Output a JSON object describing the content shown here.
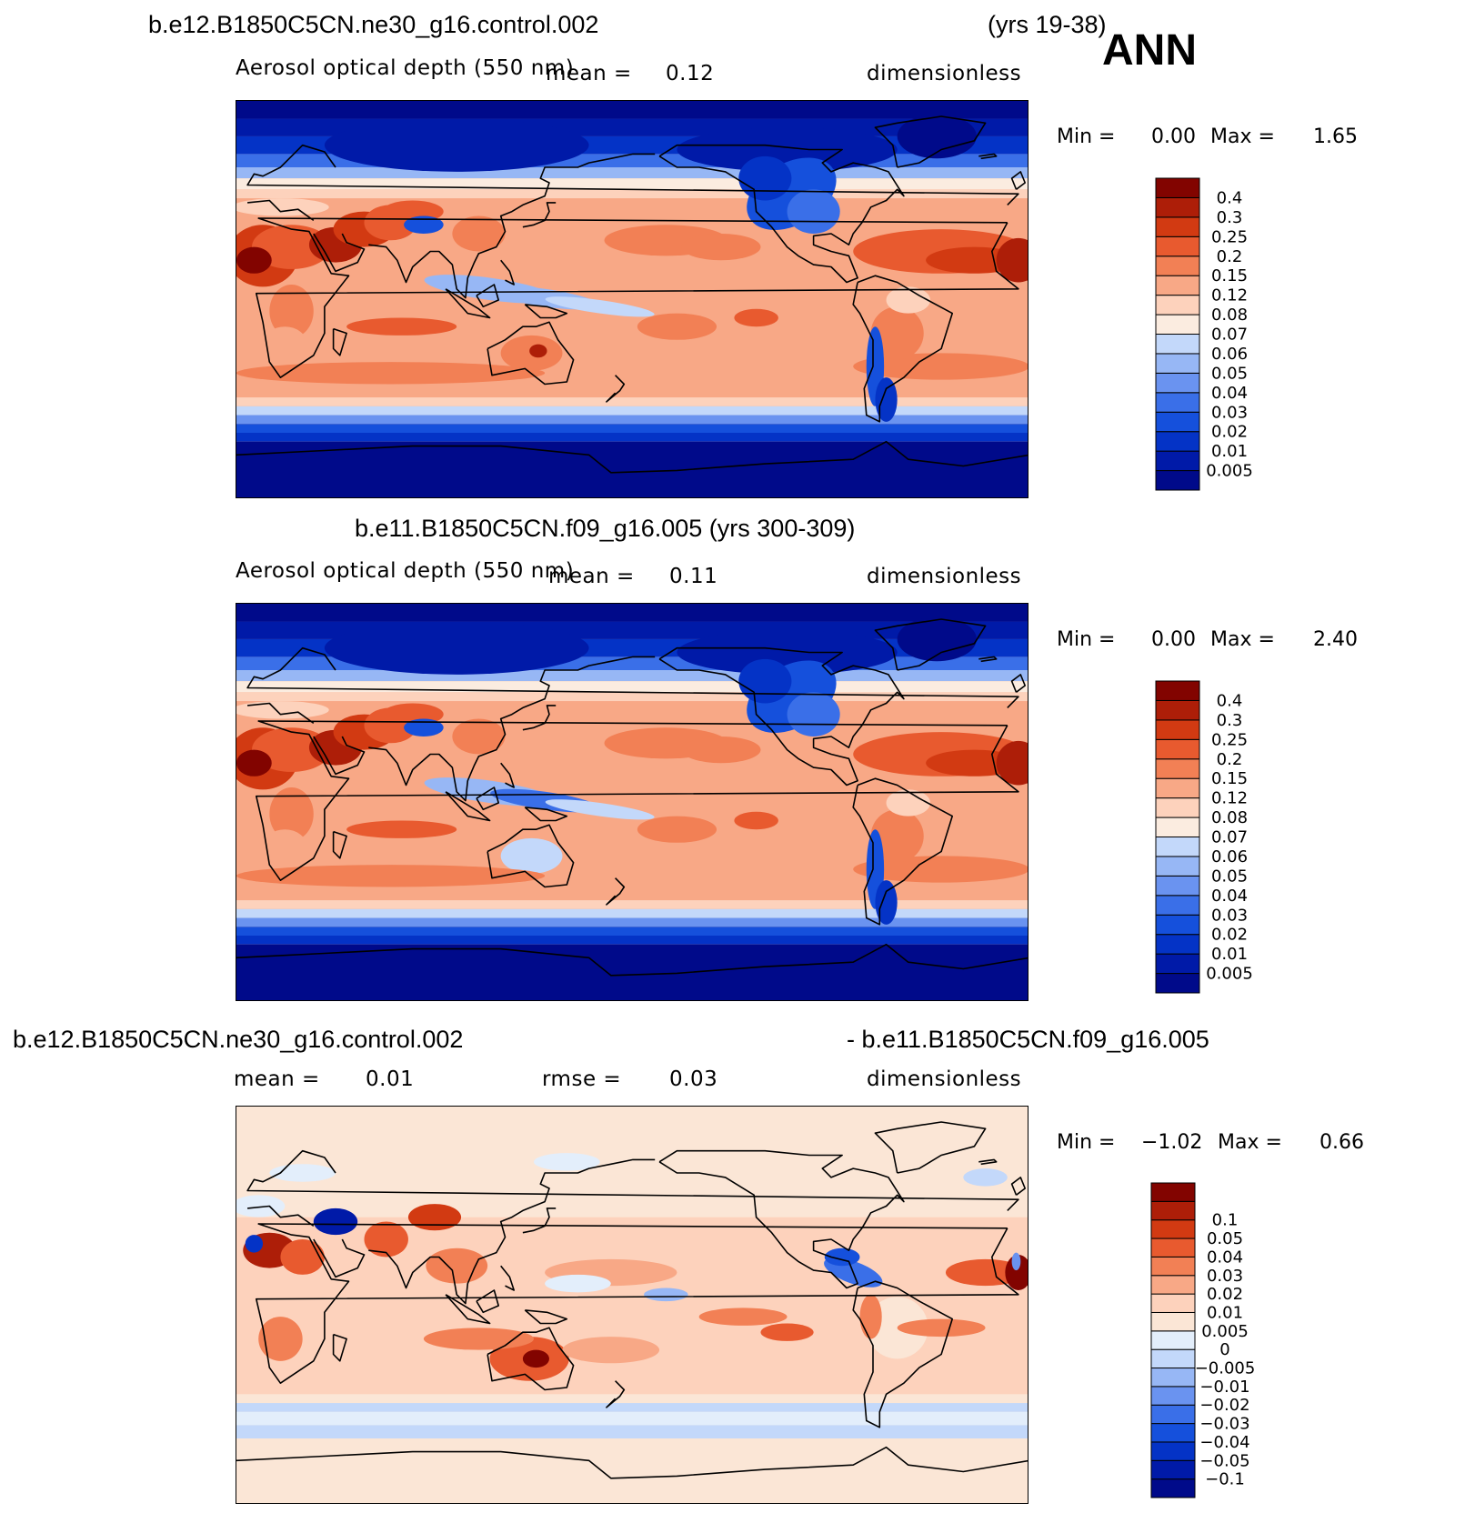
{
  "header": {
    "case_title": "b.e12.B1850C5CN.ne30_g16.control.002",
    "case_years": "(yrs 19-38)",
    "season": "ANN"
  },
  "colors": {
    "abs_palette": [
      "#000a8a",
      "#001aa8",
      "#0433c6",
      "#1550dc",
      "#3a6fe8",
      "#6a93f0",
      "#97b7f5",
      "#c3d8fa",
      "#fbece0",
      "#fdd2bc",
      "#f8a886",
      "#f28055",
      "#e85a2f",
      "#d23a12",
      "#ad1e08",
      "#820400"
    ],
    "diff_palette": [
      "#000a8a",
      "#001aa8",
      "#0433c6",
      "#1550dc",
      "#3a6fe8",
      "#6a93f0",
      "#97b7f5",
      "#c3d8fa",
      "#e3eefb",
      "#fbe6d6",
      "#fdd2bc",
      "#f8a886",
      "#f28055",
      "#e85a2f",
      "#d23a12",
      "#ad1e08",
      "#820400"
    ]
  },
  "panels": [
    {
      "id": "test",
      "variable": "Aerosol optical depth (550 nm)",
      "mean_label": "mean =",
      "mean_value": "0.12",
      "units": "dimensionless",
      "min_label": "Min =",
      "min_value": "0.00",
      "max_label": "Max =",
      "max_value": "1.65"
    },
    {
      "id": "control",
      "title": "b.e11.B1850C5CN.f09_g16.005 (yrs 300-309)",
      "variable": "Aerosol optical depth (550 nm)",
      "mean_label": "mean =",
      "mean_value": "0.11",
      "units": "dimensionless",
      "min_label": "Min =",
      "min_value": "0.00",
      "max_label": "Max =",
      "max_value": "2.40"
    },
    {
      "id": "diff",
      "title_left": "b.e12.B1850C5CN.ne30_g16.control.002",
      "title_right": "- b.e11.B1850C5CN.f09_g16.005",
      "mean_label": "mean =",
      "mean_value": "0.01",
      "rmse_label": "rmse =",
      "rmse_value": "0.03",
      "units": "dimensionless",
      "min_label": "Min =",
      "min_value": "−1.02",
      "max_label": "Max =",
      "max_value": "0.66"
    }
  ],
  "chart_data": [
    {
      "type": "heatmap",
      "title": "b.e12.B1850C5CN.ne30_g16.control.002 (yrs 19-38)",
      "variable": "Aerosol optical depth (550 nm)",
      "units": "dimensionless",
      "mean": 0.12,
      "min": 0.0,
      "max": 1.65,
      "colorbar_levels": [
        "0.005",
        "0.01",
        "0.02",
        "0.03",
        "0.04",
        "0.05",
        "0.06",
        "0.07",
        "0.08",
        "0.12",
        "0.15",
        "0.2",
        "0.25",
        "0.3",
        "0.4"
      ]
    },
    {
      "type": "heatmap",
      "title": "b.e11.B1850C5CN.f09_g16.005 (yrs 300-309)",
      "variable": "Aerosol optical depth (550 nm)",
      "units": "dimensionless",
      "mean": 0.11,
      "min": 0.0,
      "max": 2.4,
      "colorbar_levels": [
        "0.005",
        "0.01",
        "0.02",
        "0.03",
        "0.04",
        "0.05",
        "0.06",
        "0.07",
        "0.08",
        "0.12",
        "0.15",
        "0.2",
        "0.25",
        "0.3",
        "0.4"
      ]
    },
    {
      "type": "heatmap",
      "title": "b.e12.B1850C5CN.ne30_g16.control.002 - b.e11.B1850C5CN.f09_g16.005",
      "units": "dimensionless",
      "mean": 0.01,
      "rmse": 0.03,
      "min": -1.02,
      "max": 0.66,
      "colorbar_levels": [
        "−0.1",
        "−0.05",
        "−0.04",
        "−0.03",
        "−0.02",
        "−0.01",
        "−0.005",
        "0",
        "0.005",
        "0.01",
        "0.02",
        "0.03",
        "0.04",
        "0.05",
        "0.1"
      ]
    }
  ]
}
